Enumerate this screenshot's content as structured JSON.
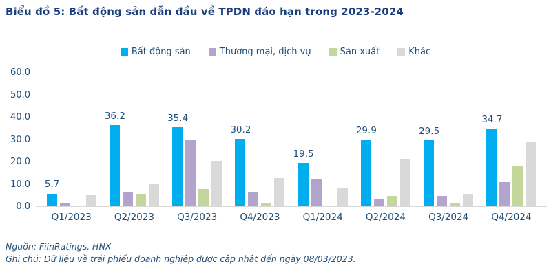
{
  "title": "Biểu đồ 5: Bất động sản dẫn đầu về TPDN đáo hạn trong 2023-2024",
  "colors": {
    "title_text": "#1b3f7e",
    "axis_text": "#1f4e79",
    "baseline": "#d9d9d9"
  },
  "chart_data": {
    "type": "bar",
    "title": "Biểu đồ 5: Bất động sản dẫn đầu về TPDN đáo hạn trong 2023-2024",
    "categories": [
      "Q1/2023",
      "Q2/2023",
      "Q3/2023",
      "Q4/2023",
      "Q1/2024",
      "Q2/2024",
      "Q3/2024",
      "Q4/2024"
    ],
    "series": [
      {
        "key": "bat-dong-san",
        "name": "Bất động sản",
        "color": "#00AEEF",
        "values": [
          5.7,
          36.2,
          35.4,
          30.2,
          19.5,
          29.9,
          29.5,
          34.7
        ]
      },
      {
        "key": "thuong-mai-dich-vu",
        "name": "Thương mại, dịch vụ",
        "color": "#B2A4CC",
        "values": [
          1.3,
          6.6,
          30.0,
          6.3,
          12.2,
          3.2,
          4.7,
          10.9
        ]
      },
      {
        "key": "san-xuat",
        "name": "Sản xuất",
        "color": "#C3D69B",
        "values": [
          0.0,
          5.6,
          7.6,
          1.4,
          0.4,
          4.5,
          1.5,
          18.3
        ]
      },
      {
        "key": "khac",
        "name": "Khác",
        "color": "#D9D9D9",
        "values": [
          5.3,
          10.3,
          20.3,
          12.6,
          8.4,
          20.9,
          5.4,
          29.0
        ]
      }
    ],
    "data_labels": [
      "5.7",
      "36.2",
      "35.4",
      "30.2",
      "19.5",
      "29.9",
      "29.5",
      "34.7"
    ],
    "data_label_series": "Bất động sản",
    "ylim": [
      0,
      60
    ],
    "yticks": [
      "0.0",
      "10.0",
      "20.0",
      "30.0",
      "40.0",
      "50.0",
      "60.0"
    ],
    "grid": false,
    "legend_position": "top"
  },
  "notes": {
    "source": "Nguồn: FiinRatings, HNX",
    "note": "Ghi chú: Dữ liệu về trái phiếu doanh nghiệp được cập nhật đến ngày 08/03/2023."
  }
}
